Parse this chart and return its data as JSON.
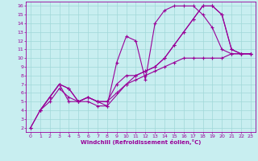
{
  "xlabel": "Windchill (Refroidissement éolien,°C)",
  "bg_color": "#c8eef0",
  "line_color": "#990099",
  "grid_color": "#a0d8d8",
  "xlim": [
    -0.5,
    23.5
  ],
  "ylim": [
    1.5,
    16.5
  ],
  "xticks": [
    0,
    1,
    2,
    3,
    4,
    5,
    6,
    7,
    8,
    9,
    10,
    11,
    12,
    13,
    14,
    15,
    16,
    17,
    18,
    19,
    20,
    21,
    22,
    23
  ],
  "yticks": [
    2,
    3,
    4,
    5,
    6,
    7,
    8,
    9,
    10,
    11,
    12,
    13,
    14,
    15,
    16
  ],
  "line1_x": [
    0,
    1,
    2,
    3,
    4,
    5,
    6,
    7,
    8,
    9,
    10,
    11,
    12,
    13,
    14,
    15,
    16,
    17,
    18,
    19,
    20,
    21,
    22,
    23
  ],
  "line1_y": [
    2.0,
    4.0,
    5.5,
    7.0,
    5.0,
    5.0,
    5.0,
    4.5,
    4.5,
    9.5,
    12.5,
    12.0,
    7.5,
    14.0,
    15.5,
    16.0,
    16.0,
    16.0,
    15.0,
    13.5,
    11.0,
    10.5,
    10.5,
    10.5
  ],
  "line2_x": [
    1,
    2,
    3,
    4,
    5,
    6,
    7,
    8,
    9,
    10,
    11,
    12,
    13,
    14,
    15,
    16,
    17,
    18,
    19,
    20,
    21,
    22,
    23
  ],
  "line2_y": [
    4.0,
    5.5,
    7.0,
    6.5,
    5.0,
    5.5,
    5.0,
    5.0,
    7.0,
    8.0,
    8.0,
    8.5,
    9.0,
    10.0,
    11.5,
    13.0,
    14.5,
    16.0,
    16.0,
    15.0,
    11.0,
    10.5,
    10.5
  ],
  "line3_x": [
    1,
    2,
    3,
    4,
    5,
    6,
    7,
    8,
    10,
    11,
    12,
    13,
    14,
    15,
    16,
    17,
    18,
    19,
    20,
    21,
    22,
    23
  ],
  "line3_y": [
    4.0,
    5.5,
    7.0,
    6.5,
    5.0,
    5.5,
    5.0,
    4.5,
    7.0,
    8.0,
    8.5,
    9.0,
    10.0,
    11.5,
    13.0,
    14.5,
    16.0,
    16.0,
    15.0,
    11.0,
    10.5,
    10.5
  ],
  "line4_x": [
    0,
    1,
    2,
    3,
    4,
    5,
    6,
    7,
    8,
    9,
    10,
    11,
    12,
    13,
    14,
    15,
    16,
    17,
    18,
    19,
    20,
    21,
    22,
    23
  ],
  "line4_y": [
    2.0,
    4.0,
    5.0,
    6.5,
    5.5,
    5.0,
    5.5,
    5.0,
    5.0,
    6.0,
    7.0,
    7.5,
    8.0,
    8.5,
    9.0,
    9.5,
    10.0,
    10.0,
    10.0,
    10.0,
    10.0,
    10.5,
    10.5,
    10.5
  ]
}
